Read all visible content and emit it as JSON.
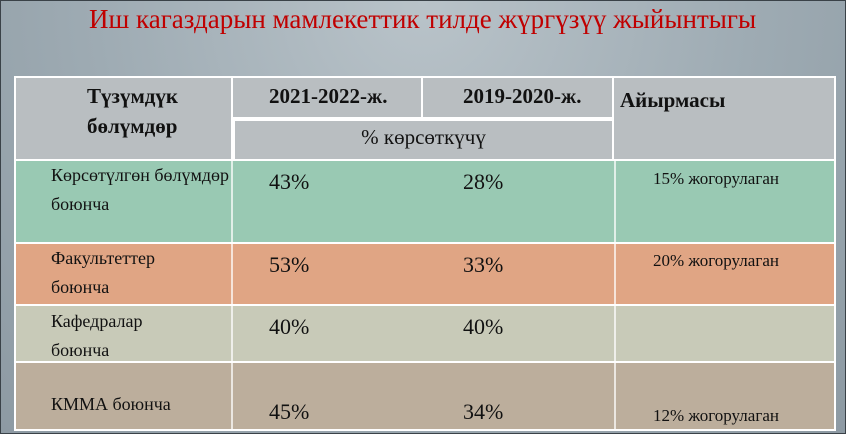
{
  "title": "Иш кагаздарын мамлекеттик тилде жүргүзүү жыйынтыгы",
  "table": {
    "header": [
      "Түзүмдүк бөлүмдөр",
      "2021-2022-ж.",
      "2019-2020-ж.",
      "Айырмасы"
    ],
    "subheader": "% көрсөткүчү",
    "rows": [
      [
        "Көрсөтүлгөн бөлүмдөр боюнча",
        "43%",
        "28%",
        "15% жогорулаган"
      ],
      [
        "Факультеттер боюнча",
        "53%",
        "33%",
        "20% жогорулаган"
      ],
      [
        "Кафедралар боюнча",
        "40%",
        "40%"
      ],
      [
        "КММА боюнча",
        "45%",
        "34%",
        "12% жогорулаган"
      ]
    ]
  }
}
